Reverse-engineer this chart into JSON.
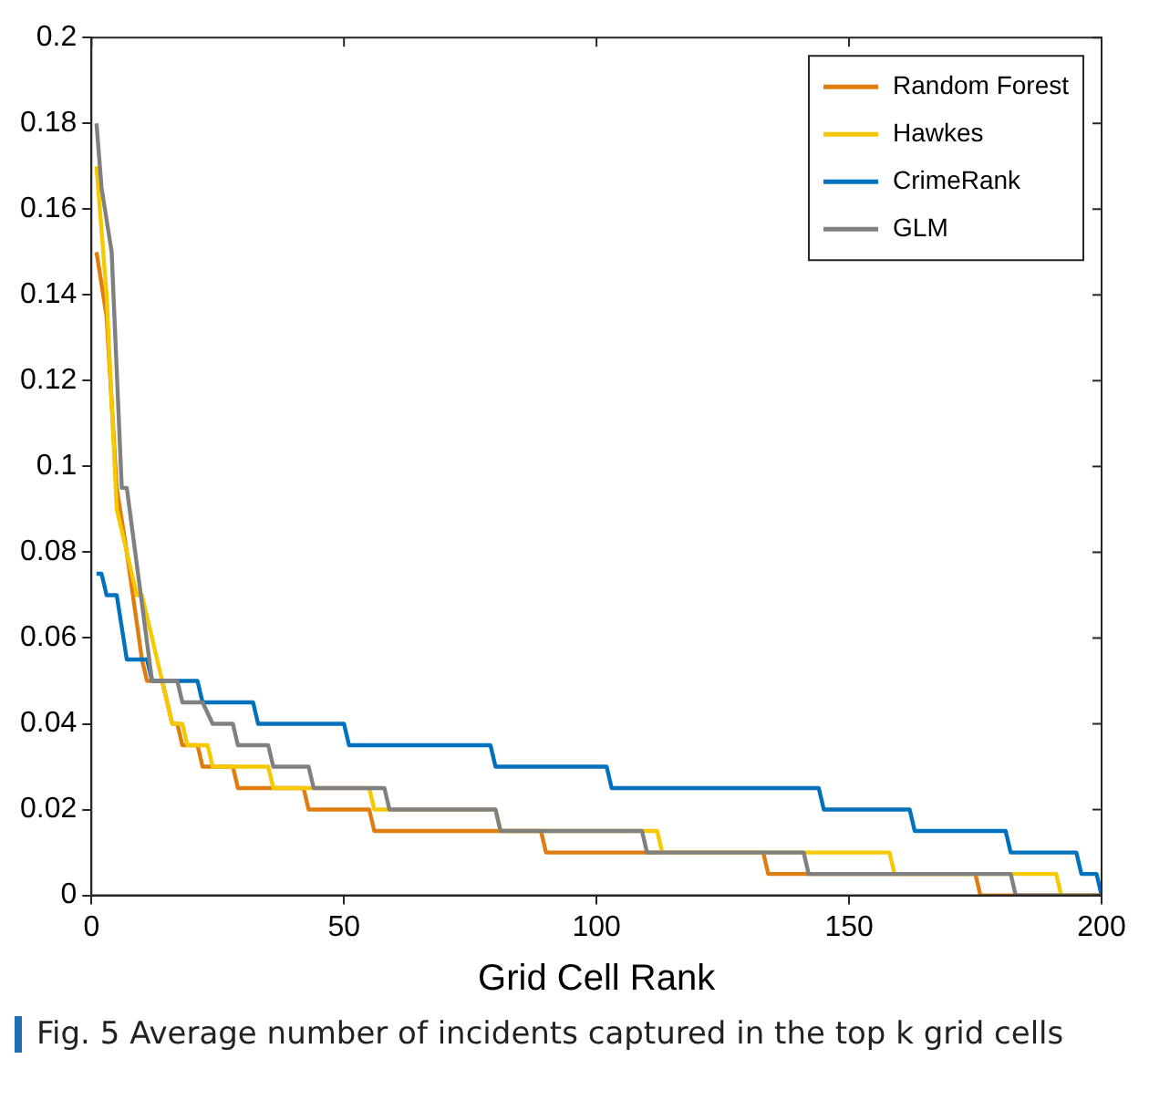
{
  "chart_data": {
    "type": "line",
    "xlabel": "Grid Cell Rank",
    "annotations": [
      "Fig. 5  Average number of incidents captured in the top k grid cells"
    ],
    "xlim": [
      0,
      200
    ],
    "xticks": [
      0,
      50,
      100,
      150,
      200
    ],
    "ylim": [
      0,
      0.2
    ],
    "yticks": [
      0,
      0.02,
      0.04,
      0.06,
      0.08,
      0.1,
      0.12,
      0.14,
      0.16,
      0.18,
      0.2
    ],
    "grid": false,
    "legend": "top right",
    "marker": "none",
    "line_style": "solid",
    "series": [
      {
        "name": "Random Forest",
        "color": "#e07d10",
        "x": [
          1,
          3,
          5,
          7,
          10,
          11,
          14,
          16,
          17,
          18,
          21,
          22,
          28,
          29,
          42,
          43,
          55,
          56,
          89,
          90,
          133,
          134,
          175,
          176,
          200
        ],
        "values": [
          0.15,
          0.135,
          0.095,
          0.08,
          0.055,
          0.05,
          0.05,
          0.04,
          0.04,
          0.035,
          0.035,
          0.03,
          0.03,
          0.025,
          0.025,
          0.02,
          0.02,
          0.015,
          0.015,
          0.01,
          0.01,
          0.005,
          0.005,
          0,
          0
        ]
      },
      {
        "name": "Hawkes",
        "color": "#f5c800",
        "x": [
          1,
          3,
          5,
          9,
          10,
          14,
          16,
          18,
          19,
          23,
          24,
          35,
          36,
          55,
          56,
          80,
          81,
          112,
          113,
          158,
          159,
          191,
          192,
          200
        ],
        "values": [
          0.17,
          0.14,
          0.09,
          0.07,
          0.07,
          0.05,
          0.04,
          0.04,
          0.035,
          0.035,
          0.03,
          0.03,
          0.025,
          0.025,
          0.02,
          0.02,
          0.015,
          0.015,
          0.01,
          0.01,
          0.005,
          0.005,
          0,
          0
        ]
      },
      {
        "name": "CrimeRank",
        "color": "#0072bd",
        "x": [
          1,
          2,
          3,
          5,
          7,
          11,
          12,
          21,
          22,
          32,
          33,
          50,
          51,
          79,
          80,
          102,
          103,
          144,
          145,
          162,
          163,
          181,
          182,
          195,
          196,
          199,
          200
        ],
        "values": [
          0.075,
          0.075,
          0.07,
          0.07,
          0.055,
          0.055,
          0.05,
          0.05,
          0.045,
          0.045,
          0.04,
          0.04,
          0.035,
          0.035,
          0.03,
          0.03,
          0.025,
          0.025,
          0.02,
          0.02,
          0.015,
          0.015,
          0.01,
          0.01,
          0.005,
          0.005,
          0
        ]
      },
      {
        "name": "GLM",
        "color": "#808080",
        "x": [
          1,
          2,
          4,
          6,
          7,
          12,
          17,
          18,
          22,
          24,
          28,
          29,
          35,
          36,
          43,
          44,
          58,
          59,
          80,
          81,
          109,
          110,
          141,
          142,
          182,
          183,
          200
        ],
        "values": [
          0.18,
          0.165,
          0.15,
          0.095,
          0.095,
          0.05,
          0.05,
          0.045,
          0.045,
          0.04,
          0.04,
          0.035,
          0.035,
          0.03,
          0.03,
          0.025,
          0.025,
          0.02,
          0.02,
          0.015,
          0.015,
          0.01,
          0.01,
          0.005,
          0.005,
          0,
          0
        ]
      }
    ]
  }
}
